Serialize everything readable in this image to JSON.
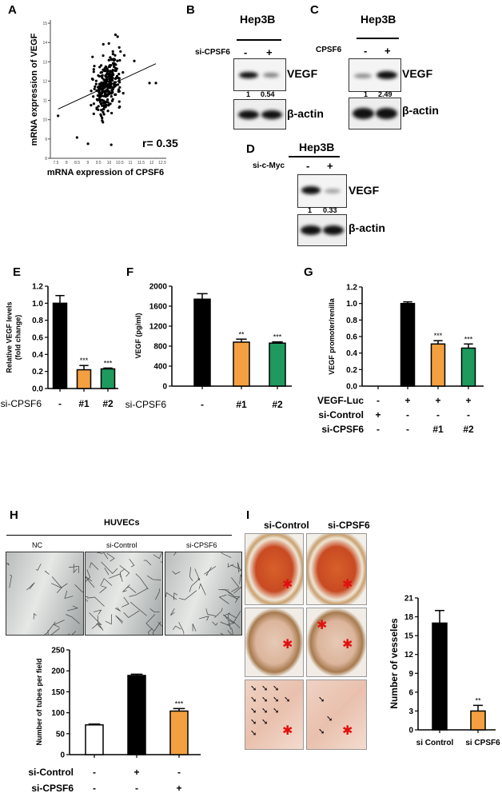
{
  "panels": {
    "A": "A",
    "B": "B",
    "C": "C",
    "D": "D",
    "E": "E",
    "F": "F",
    "G": "G",
    "H": "H",
    "I": "I"
  },
  "blots": {
    "B": {
      "cell_line": "Hep3B",
      "treatment": "si-CPSF6",
      "lanes": [
        "-",
        "+"
      ],
      "target": "VEGF",
      "quant": [
        "1",
        "0.54"
      ],
      "control": "β-actin"
    },
    "C": {
      "cell_line": "Hep3B",
      "treatment": "CPSF6",
      "lanes": [
        "-",
        "+"
      ],
      "target": "VEGF",
      "quant": [
        "1",
        "2.49"
      ],
      "control": "β-actin"
    },
    "D": {
      "cell_line": "Hep3B",
      "treatment": "si-c-Myc",
      "lanes": [
        "-",
        "+"
      ],
      "target": "VEGF",
      "quant": [
        "1",
        "0.33"
      ],
      "control": "β-actin"
    }
  },
  "panel_H": {
    "title": "HUVECs",
    "images": [
      "NC",
      "si-Control",
      "si-CPSF6"
    ]
  },
  "panel_I": {
    "columns": [
      "si-Control",
      "si-CPSF6"
    ]
  },
  "colors": {
    "black": "#000000",
    "orange": "#F4A040",
    "green": "#1E9A5E",
    "white": "#FFFFFF",
    "star": "#E21010"
  },
  "chart_data": [
    {
      "id": "A",
      "type": "scatter",
      "xlabel": "mRNA expression of CPSF6",
      "ylabel": "mRNA expression of VEGF",
      "xlim": [
        7.5,
        12.5
      ],
      "ylim": [
        8,
        15
      ],
      "xticks": [
        "7.5",
        "8",
        "8.5",
        "9",
        "9.5",
        "10",
        "10.5",
        "11",
        "11.5",
        "12",
        "12.5"
      ],
      "yticks": [
        "8",
        "9",
        "10",
        "11",
        "12",
        "13",
        "14",
        "15"
      ],
      "annotation": "r= 0.35",
      "r": 0.35,
      "trendline": [
        [
          7.6,
          10.55
        ],
        [
          12.2,
          12.9
        ]
      ],
      "cluster_center": [
        9.9,
        11.8
      ],
      "outliers": [
        [
          7.6,
          10.2
        ],
        [
          10.3,
          14.4
        ],
        [
          10.4,
          14.3
        ],
        [
          10.1,
          8.7
        ],
        [
          11.9,
          11.9
        ],
        [
          12.2,
          11.9
        ]
      ]
    },
    {
      "id": "E",
      "type": "bar",
      "ylabel": [
        "Relative VEGF levels",
        "(fold change)"
      ],
      "ylim": [
        0,
        1.2
      ],
      "yticks": [
        "0.0",
        "0.2",
        "0.4",
        "0.6",
        "0.8",
        "1.0",
        "1.2"
      ],
      "values": [
        1.0,
        0.22,
        0.23
      ],
      "errors": [
        0.09,
        0.05,
        0.01
      ],
      "fills": [
        "black",
        "orange",
        "green"
      ],
      "significance": [
        "",
        "***",
        "***"
      ],
      "rows": [
        {
          "label": "si-CPSF6",
          "values": [
            "-",
            "#1",
            "#2"
          ]
        }
      ]
    },
    {
      "id": "F",
      "type": "bar",
      "ylabel": [
        "VEGF (pg/ml)"
      ],
      "ylim": [
        0,
        2000
      ],
      "yticks": [
        "0",
        "400",
        "800",
        "1200",
        "1600",
        "2000"
      ],
      "values": [
        1740,
        880,
        860
      ],
      "errors": [
        110,
        60,
        25
      ],
      "fills": [
        "black",
        "orange",
        "green"
      ],
      "significance": [
        "",
        "**",
        "***"
      ],
      "rows": [
        {
          "label": "si-CPSF6",
          "values": [
            "-",
            "#1",
            "#2"
          ]
        }
      ]
    },
    {
      "id": "G",
      "type": "bar",
      "ylabel": [
        "VEGF promoter/renilla"
      ],
      "ylim": [
        0,
        1.2
      ],
      "yticks": [
        "0.0",
        "0.2",
        "0.4",
        "0.6",
        "0.8",
        "1.0",
        "1.2"
      ],
      "values": [
        0,
        1.0,
        0.51,
        0.46
      ],
      "errors": [
        0,
        0.02,
        0.04,
        0.05
      ],
      "fills": [
        "white",
        "black",
        "orange",
        "green"
      ],
      "significance": [
        "",
        "",
        "***",
        "***"
      ],
      "rows": [
        {
          "label": "VEGF-Luc",
          "values": [
            "-",
            "+",
            "+",
            "+"
          ]
        },
        {
          "label": "si-Control",
          "values": [
            "+",
            "-",
            "-",
            "-"
          ]
        },
        {
          "label": "si-CPSF6",
          "values": [
            "-",
            "-",
            "#1",
            "#2"
          ]
        }
      ]
    },
    {
      "id": "H",
      "type": "bar",
      "ylabel": [
        "Number of tubes per field"
      ],
      "ylim": [
        0,
        250
      ],
      "yticks": [
        "0",
        "50",
        "100",
        "150",
        "200",
        "250"
      ],
      "values": [
        71,
        189,
        104
      ],
      "errors": [
        2,
        3,
        6
      ],
      "fills": [
        "white",
        "black",
        "orange"
      ],
      "significance": [
        "",
        "",
        "***"
      ],
      "rows": [
        {
          "label": "si-Control",
          "values": [
            "-",
            "+",
            "-"
          ]
        },
        {
          "label": "si-CPSF6",
          "values": [
            "-",
            "-",
            "+"
          ]
        }
      ]
    },
    {
      "id": "I",
      "type": "bar",
      "ylabel": [
        "Number of vesseles"
      ],
      "ylim": [
        0,
        21
      ],
      "yticks": [
        "0",
        "3",
        "6",
        "9",
        "12",
        "15",
        "18",
        "21"
      ],
      "values": [
        17,
        3
      ],
      "errors": [
        2,
        0.9
      ],
      "fills": [
        "black",
        "orange"
      ],
      "significance": [
        "",
        "**"
      ],
      "categories": [
        "si Control",
        "si CPSF6"
      ]
    }
  ]
}
